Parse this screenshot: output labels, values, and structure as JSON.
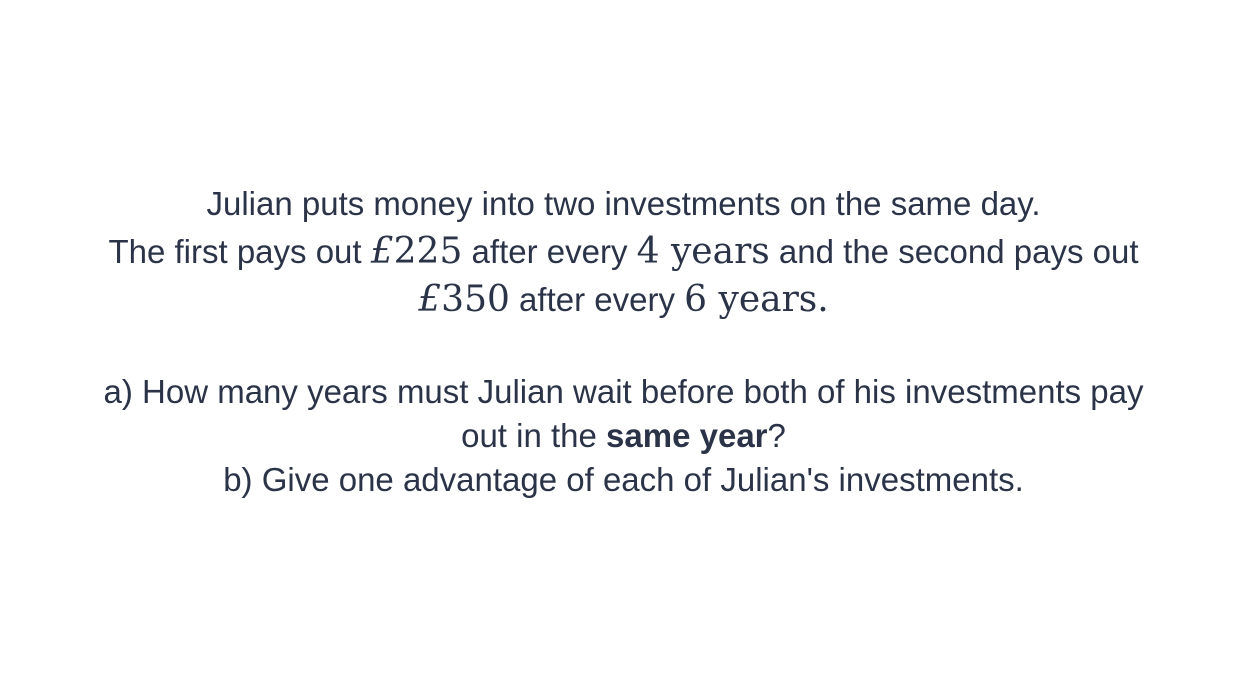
{
  "problem": {
    "line1": "Julian puts money into two investments on the same day.",
    "line2": {
      "part1": "The first pays out ",
      "amount1_symbol": "£",
      "amount1_value": "225",
      "part2": " after every ",
      "period1_value": "4",
      "period1_unit": " years",
      "part3": " and the second pays out"
    },
    "line3": {
      "amount2_symbol": "£",
      "amount2_value": "350",
      "part1": " after every ",
      "period2_value": "6",
      "period2_unit": " years",
      "end": "."
    }
  },
  "questions": {
    "a_line1": "a) How many years must Julian wait before both of his investments pay",
    "a_line2_prefix": "out in the ",
    "a_line2_bold": "same year",
    "a_line2_suffix": "?",
    "b": "b) Give one advantage of each of Julian's investments."
  }
}
